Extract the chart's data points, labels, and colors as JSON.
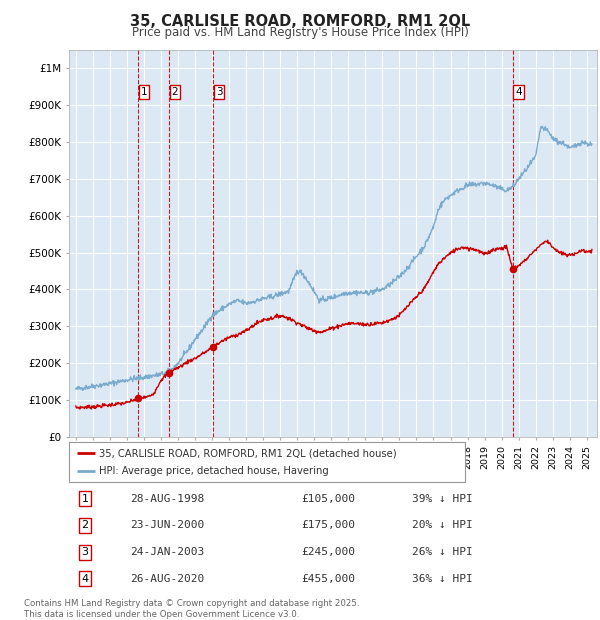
{
  "title": "35, CARLISLE ROAD, ROMFORD, RM1 2QL",
  "subtitle": "Price paid vs. HM Land Registry's House Price Index (HPI)",
  "background_color": "#ffffff",
  "plot_bg_color": "#dce9f5",
  "grid_color": "#ffffff",
  "red_line_color": "#cc0000",
  "blue_line_color": "#7aaacc",
  "transactions": [
    {
      "num": 1,
      "date_x": 1998.65,
      "price": 105000,
      "label": "28-AUG-1998",
      "pct": "39% ↓ HPI"
    },
    {
      "num": 2,
      "date_x": 2000.47,
      "price": 175000,
      "label": "23-JUN-2000",
      "pct": "20% ↓ HPI"
    },
    {
      "num": 3,
      "date_x": 2003.07,
      "price": 245000,
      "label": "24-JAN-2003",
      "pct": "26% ↓ HPI"
    },
    {
      "num": 4,
      "date_x": 2020.65,
      "price": 455000,
      "label": "26-AUG-2020",
      "pct": "36% ↓ HPI"
    }
  ],
  "ylim": [
    0,
    1050000
  ],
  "xlim_start": 1994.6,
  "xlim_end": 2025.6,
  "yticks": [
    0,
    100000,
    200000,
    300000,
    400000,
    500000,
    600000,
    700000,
    800000,
    900000,
    1000000
  ],
  "ytick_labels": [
    "£0",
    "£100K",
    "£200K",
    "£300K",
    "£400K",
    "£500K",
    "£600K",
    "£700K",
    "£800K",
    "£900K",
    "£1M"
  ],
  "footnote": "Contains HM Land Registry data © Crown copyright and database right 2025.\nThis data is licensed under the Open Government Licence v3.0.",
  "legend_line1": "35, CARLISLE ROAD, ROMFORD, RM1 2QL (detached house)",
  "legend_line2": "HPI: Average price, detached house, Havering"
}
